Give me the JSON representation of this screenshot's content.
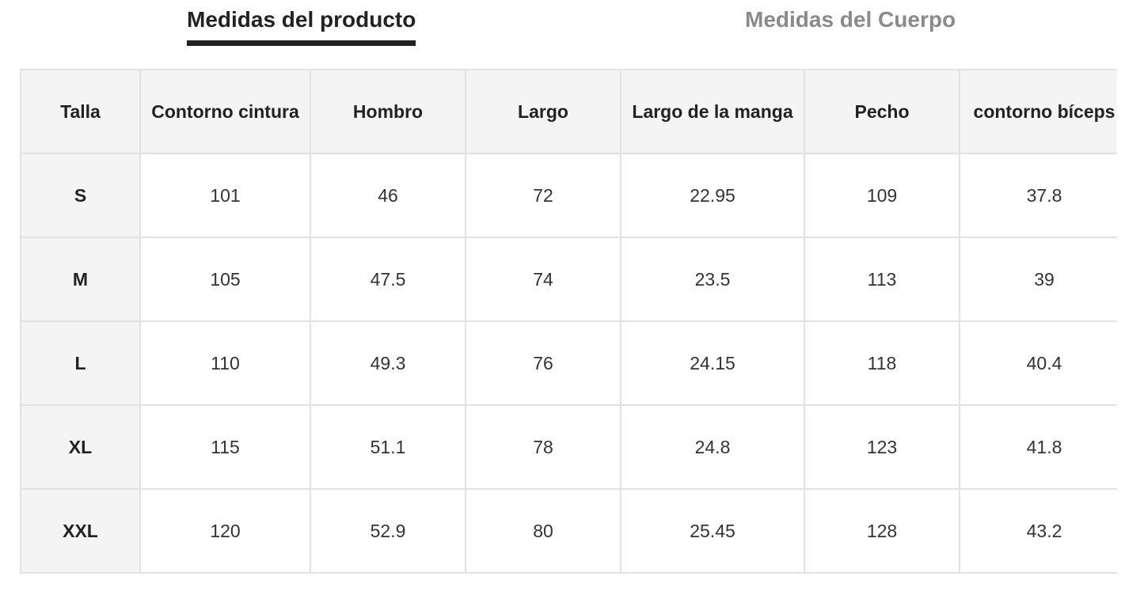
{
  "tabs": [
    {
      "label": "Medidas del producto",
      "active": true
    },
    {
      "label": "Medidas del Cuerpo",
      "active": false
    }
  ],
  "table": {
    "headers": [
      "Talla",
      "Contorno cintura",
      "Hombro",
      "Largo",
      "Largo de la manga",
      "Pecho",
      "contorno bíceps"
    ],
    "rows": [
      [
        "S",
        "101",
        "46",
        "72",
        "22.95",
        "109",
        "37.8"
      ],
      [
        "M",
        "105",
        "47.5",
        "74",
        "23.5",
        "113",
        "39"
      ],
      [
        "L",
        "110",
        "49.3",
        "76",
        "24.15",
        "118",
        "40.4"
      ],
      [
        "XL",
        "115",
        "51.1",
        "78",
        "24.8",
        "123",
        "41.8"
      ],
      [
        "XXL",
        "120",
        "52.9",
        "80",
        "25.45",
        "128",
        "43.2"
      ]
    ]
  },
  "colors": {
    "active_tab": "#222222",
    "inactive_tab": "#8a8a8a",
    "header_bg": "#f4f4f4",
    "border": "#e2e2e2"
  }
}
